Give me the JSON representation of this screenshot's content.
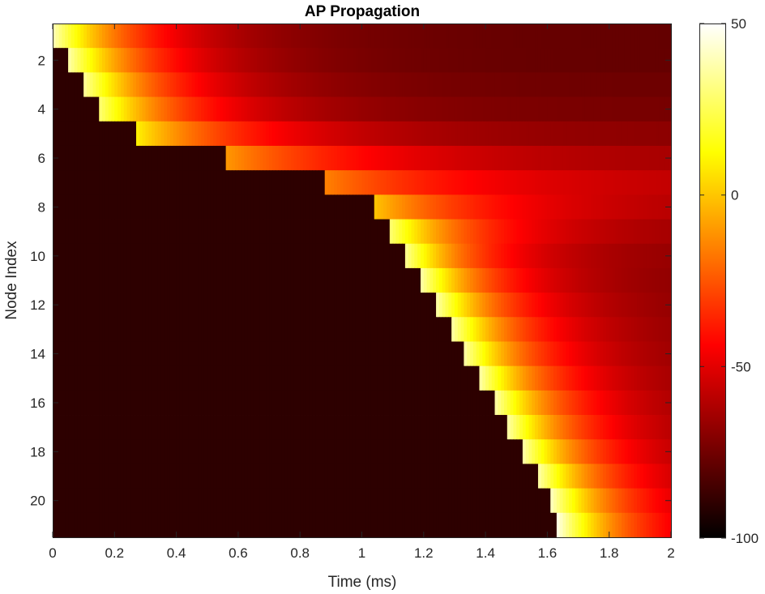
{
  "chart_data": {
    "type": "heatmap",
    "title": "AP Propagation",
    "xlabel": "Time (ms)",
    "ylabel": "Node Index",
    "xlim": [
      0,
      2
    ],
    "ylim": [
      0.5,
      21.5
    ],
    "x_ticks": [
      0,
      0.2,
      0.4,
      0.6,
      0.8,
      1,
      1.2,
      1.4,
      1.6,
      1.8,
      2
    ],
    "x_tick_labels": [
      "0",
      "0.2",
      "0.4",
      "0.6",
      "0.8",
      "1",
      "1.2",
      "1.4",
      "1.6",
      "1.8",
      "2"
    ],
    "y_ticks": [
      2,
      4,
      6,
      8,
      10,
      12,
      14,
      16,
      18,
      20
    ],
    "y_tick_labels": [
      "2",
      "4",
      "6",
      "8",
      "10",
      "12",
      "14",
      "16",
      "18",
      "20"
    ],
    "y_direction": "reverse",
    "colormap": "hot",
    "colorbar": {
      "limits": [
        -100,
        50
      ],
      "ticks": [
        50,
        0,
        -50,
        -100
      ],
      "tick_labels": [
        "50",
        "0",
        "-50",
        "-100"
      ]
    },
    "rows": [
      {
        "node": 1,
        "onset_ms": 0.0,
        "peak_mV": 40,
        "decay_ms": 0.3,
        "rest_mV": -78
      },
      {
        "node": 2,
        "onset_ms": 0.05,
        "peak_mV": 38,
        "decay_ms": 0.3,
        "rest_mV": -78
      },
      {
        "node": 3,
        "onset_ms": 0.1,
        "peak_mV": 36,
        "decay_ms": 0.3,
        "rest_mV": -76
      },
      {
        "node": 4,
        "onset_ms": 0.15,
        "peak_mV": 30,
        "decay_ms": 0.32,
        "rest_mV": -74
      },
      {
        "node": 5,
        "onset_ms": 0.27,
        "peak_mV": 10,
        "decay_ms": 0.4,
        "rest_mV": -70
      },
      {
        "node": 6,
        "onset_ms": 0.56,
        "peak_mV": -10,
        "decay_ms": 0.5,
        "rest_mV": -66
      },
      {
        "node": 7,
        "onset_ms": 0.88,
        "peak_mV": -15,
        "decay_ms": 0.5,
        "rest_mV": -62
      },
      {
        "node": 8,
        "onset_ms": 1.04,
        "peak_mV": 0,
        "decay_ms": 0.4,
        "rest_mV": -65
      },
      {
        "node": 9,
        "onset_ms": 1.09,
        "peak_mV": 30,
        "decay_ms": 0.3,
        "rest_mV": -68
      },
      {
        "node": 10,
        "onset_ms": 1.14,
        "peak_mV": 35,
        "decay_ms": 0.25,
        "rest_mV": -70
      },
      {
        "node": 11,
        "onset_ms": 1.19,
        "peak_mV": 38,
        "decay_ms": 0.25,
        "rest_mV": -72
      },
      {
        "node": 12,
        "onset_ms": 1.24,
        "peak_mV": 38,
        "decay_ms": 0.25,
        "rest_mV": -72
      },
      {
        "node": 13,
        "onset_ms": 1.29,
        "peak_mV": 38,
        "decay_ms": 0.25,
        "rest_mV": -72
      },
      {
        "node": 14,
        "onset_ms": 1.33,
        "peak_mV": 38,
        "decay_ms": 0.25,
        "rest_mV": -72
      },
      {
        "node": 15,
        "onset_ms": 1.38,
        "peak_mV": 38,
        "decay_ms": 0.25,
        "rest_mV": -72
      },
      {
        "node": 16,
        "onset_ms": 1.43,
        "peak_mV": 38,
        "decay_ms": 0.25,
        "rest_mV": -72
      },
      {
        "node": 17,
        "onset_ms": 1.47,
        "peak_mV": 38,
        "decay_ms": 0.25,
        "rest_mV": -72
      },
      {
        "node": 18,
        "onset_ms": 1.52,
        "peak_mV": 38,
        "decay_ms": 0.25,
        "rest_mV": -72
      },
      {
        "node": 19,
        "onset_ms": 1.57,
        "peak_mV": 38,
        "decay_ms": 0.25,
        "rest_mV": -72
      },
      {
        "node": 20,
        "onset_ms": 1.61,
        "peak_mV": 42,
        "decay_ms": 0.25,
        "rest_mV": -72
      },
      {
        "node": 21,
        "onset_ms": 1.63,
        "peak_mV": 48,
        "decay_ms": 0.25,
        "rest_mV": -72
      }
    ],
    "baseline_mV": -90
  }
}
